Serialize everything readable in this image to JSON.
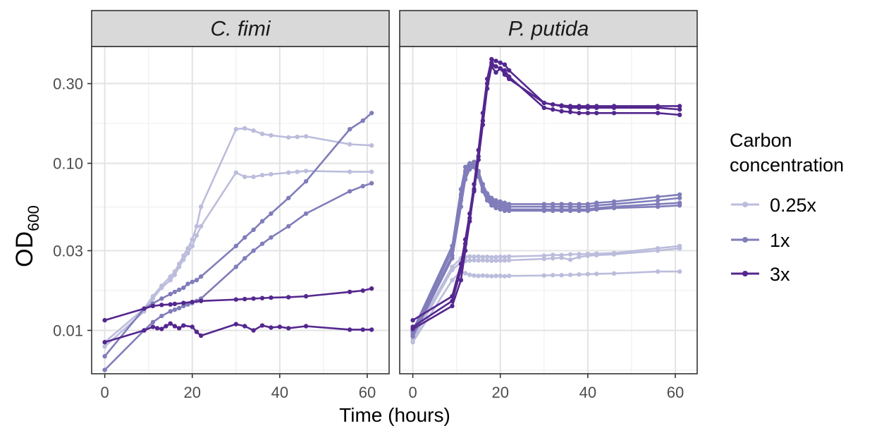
{
  "chart_data": {
    "type": "line",
    "xlabel": "Time (hours)",
    "ylabel_main": "OD",
    "ylabel_sub": "600",
    "y_scale": "log10",
    "ylim": [
      0.0055,
      0.5
    ],
    "xlim": [
      -3,
      65
    ],
    "y_ticks": [
      0.01,
      0.03,
      0.1,
      0.3
    ],
    "y_tick_labels": [
      "0.01",
      "0.03",
      "0.10",
      "0.30"
    ],
    "x_ticks": [
      0,
      20,
      40,
      60
    ],
    "x_tick_labels": [
      "0",
      "20",
      "40",
      "60"
    ],
    "legend": {
      "title_line1": "Carbon",
      "title_line2": "concentration",
      "entries": [
        {
          "label": "0.25x",
          "color": "#bcbddc"
        },
        {
          "label": "1x",
          "color": "#807dba"
        },
        {
          "label": "3x",
          "color": "#54278f"
        }
      ]
    },
    "colors": {
      "0.25x": "#bcbddc",
      "1x": "#807dba",
      "3x": "#54278f"
    },
    "panels": [
      {
        "title": "C. fimi",
        "series": [
          {
            "group": "0.25x",
            "x": [
              0,
              9,
              11,
              13,
              15,
              16,
              17,
              18,
              19,
              20,
              21,
              22,
              30,
              32,
              34,
              36,
              38,
              42,
              44,
              46,
              56,
              61
            ],
            "y": [
              0.0085,
              0.0135,
              0.016,
              0.0185,
              0.021,
              0.0225,
              0.025,
              0.028,
              0.031,
              0.035,
              0.042,
              0.055,
              0.16,
              0.162,
              0.157,
              0.15,
              0.147,
              0.143,
              0.144,
              0.145,
              0.13,
              0.128
            ]
          },
          {
            "group": "0.25x",
            "x": [
              0,
              9,
              11,
              13,
              15,
              16,
              17,
              18,
              19,
              20,
              21,
              22,
              30,
              32,
              34,
              36,
              38,
              42,
              44,
              46,
              56,
              61
            ],
            "y": [
              0.008,
              0.013,
              0.0155,
              0.018,
              0.02,
              0.0215,
              0.024,
              0.0265,
              0.029,
              0.032,
              0.037,
              0.042,
              0.088,
              0.083,
              0.083,
              0.085,
              0.086,
              0.088,
              0.089,
              0.09,
              0.089,
              0.089
            ]
          },
          {
            "group": "1x",
            "x": [
              0,
              9,
              11,
              13,
              15,
              16,
              17,
              18,
              19,
              20,
              21,
              22,
              30,
              32,
              34,
              36,
              38,
              42,
              46,
              56,
              59,
              61
            ],
            "y": [
              0.007,
              0.0135,
              0.0145,
              0.0155,
              0.0165,
              0.017,
              0.0175,
              0.018,
              0.019,
              0.0195,
              0.02,
              0.021,
              0.032,
              0.036,
              0.04,
              0.045,
              0.05,
              0.062,
              0.078,
              0.16,
              0.18,
              0.2
            ]
          },
          {
            "group": "1x",
            "x": [
              0,
              9,
              11,
              13,
              15,
              16,
              17,
              18,
              19,
              20,
              21,
              22,
              30,
              32,
              34,
              36,
              38,
              42,
              46,
              56,
              59,
              61
            ],
            "y": [
              0.0058,
              0.01,
              0.0112,
              0.0122,
              0.013,
              0.0133,
              0.0136,
              0.014,
              0.0143,
              0.0146,
              0.015,
              0.0155,
              0.024,
              0.027,
              0.03,
              0.033,
              0.036,
              0.042,
              0.05,
              0.068,
              0.073,
              0.076
            ]
          },
          {
            "group": "3x",
            "x": [
              0,
              9,
              11,
              13,
              15,
              16,
              18,
              20,
              22,
              30,
              32,
              34,
              36,
              38,
              42,
              46,
              56,
              59,
              61
            ],
            "y": [
              0.0115,
              0.0135,
              0.014,
              0.0142,
              0.0143,
              0.0144,
              0.0146,
              0.0148,
              0.015,
              0.0153,
              0.0154,
              0.0155,
              0.0156,
              0.0157,
              0.0158,
              0.016,
              0.017,
              0.0173,
              0.0178
            ]
          },
          {
            "group": "3x",
            "x": [
              0,
              9,
              11,
              12,
              13,
              14,
              15,
              16,
              17,
              18,
              20,
              21,
              22,
              30,
              32,
              34,
              36,
              38,
              40,
              42,
              46,
              56,
              59,
              61
            ],
            "y": [
              0.0085,
              0.01,
              0.0105,
              0.0103,
              0.0102,
              0.0106,
              0.011,
              0.0106,
              0.0103,
              0.0107,
              0.0105,
              0.0098,
              0.0093,
              0.0109,
              0.0106,
              0.01,
              0.0107,
              0.0104,
              0.0105,
              0.0103,
              0.0106,
              0.0101,
              0.0101,
              0.0101
            ]
          }
        ]
      },
      {
        "title": "P. putida",
        "series": [
          {
            "group": "0.25x",
            "x": [
              0,
              9,
              11,
              12,
              13,
              14,
              15,
              16,
              17,
              18,
              19,
              20,
              21,
              22,
              30,
              32,
              34,
              36,
              38,
              40,
              42,
              46,
              56,
              61
            ],
            "y": [
              0.0092,
              0.024,
              0.027,
              0.0275,
              0.0277,
              0.0276,
              0.0277,
              0.0275,
              0.0276,
              0.0274,
              0.0275,
              0.0276,
              0.0275,
              0.0277,
              0.028,
              0.0283,
              0.0282,
              0.0285,
              0.0286,
              0.0287,
              0.0288,
              0.029,
              0.031,
              0.032
            ]
          },
          {
            "group": "0.25x",
            "x": [
              0,
              9,
              11,
              12,
              13,
              14,
              15,
              16,
              17,
              18,
              19,
              20,
              21,
              22,
              30,
              32,
              34,
              36,
              38,
              40,
              42,
              46,
              56,
              61
            ],
            "y": [
              0.0088,
              0.023,
              0.0255,
              0.026,
              0.0262,
              0.0263,
              0.0262,
              0.0263,
              0.0262,
              0.0261,
              0.0262,
              0.0262,
              0.0262,
              0.0263,
              0.0268,
              0.027,
              0.0272,
              0.0265,
              0.0275,
              0.028,
              0.0282,
              0.0285,
              0.03,
              0.031
            ]
          },
          {
            "group": "0.25x",
            "x": [
              0,
              9,
              11,
              12,
              13,
              14,
              15,
              16,
              17,
              18,
              19,
              20,
              21,
              22,
              30,
              32,
              34,
              36,
              38,
              40,
              42,
              46,
              56,
              61
            ],
            "y": [
              0.0085,
              0.02,
              0.0225,
              0.022,
              0.0215,
              0.0213,
              0.0212,
              0.0213,
              0.0212,
              0.0211,
              0.0212,
              0.0212,
              0.0211,
              0.0212,
              0.0213,
              0.0214,
              0.0214,
              0.0215,
              0.0216,
              0.0217,
              0.0218,
              0.0219,
              0.0225,
              0.0225
            ]
          },
          {
            "group": "1x",
            "x": [
              0,
              9,
              11,
              12,
              13,
              14,
              15,
              16,
              17,
              18,
              19,
              20,
              21,
              22,
              30,
              32,
              34,
              36,
              38,
              40,
              42,
              46,
              56,
              61
            ],
            "y": [
              0.01,
              0.032,
              0.07,
              0.095,
              0.1,
              0.102,
              0.09,
              0.075,
              0.066,
              0.062,
              0.06,
              0.059,
              0.058,
              0.057,
              0.057,
              0.057,
              0.057,
              0.057,
              0.057,
              0.057,
              0.058,
              0.059,
              0.063,
              0.065
            ]
          },
          {
            "group": "1x",
            "x": [
              0,
              9,
              11,
              12,
              13,
              14,
              15,
              16,
              17,
              18,
              19,
              20,
              21,
              22,
              30,
              32,
              34,
              36,
              38,
              40,
              42,
              46,
              56,
              61
            ],
            "y": [
              0.0098,
              0.03,
              0.065,
              0.09,
              0.098,
              0.1,
              0.088,
              0.072,
              0.064,
              0.06,
              0.058,
              0.057,
              0.056,
              0.055,
              0.055,
              0.055,
              0.055,
              0.055,
              0.055,
              0.055,
              0.056,
              0.057,
              0.06,
              0.062
            ]
          },
          {
            "group": "1x",
            "x": [
              0,
              9,
              11,
              12,
              13,
              14,
              15,
              16,
              17,
              18,
              19,
              20,
              21,
              22,
              30,
              32,
              34,
              36,
              38,
              40,
              42,
              46,
              56,
              61
            ],
            "y": [
              0.0095,
              0.028,
              0.06,
              0.085,
              0.095,
              0.097,
              0.085,
              0.07,
              0.062,
              0.058,
              0.056,
              0.055,
              0.054,
              0.053,
              0.053,
              0.053,
              0.053,
              0.053,
              0.053,
              0.053,
              0.054,
              0.055,
              0.057,
              0.058
            ]
          },
          {
            "group": "1x",
            "x": [
              0,
              9,
              11,
              12,
              13,
              14,
              15,
              16,
              17,
              18,
              19,
              20,
              21,
              22,
              30,
              32,
              34,
              36,
              38,
              40,
              42,
              46,
              56,
              61
            ],
            "y": [
              0.0092,
              0.027,
              0.055,
              0.08,
              0.092,
              0.095,
              0.083,
              0.068,
              0.06,
              0.056,
              0.054,
              0.053,
              0.052,
              0.052,
              0.052,
              0.052,
              0.052,
              0.052,
              0.052,
              0.052,
              0.053,
              0.054,
              0.055,
              0.056
            ]
          },
          {
            "group": "3x",
            "x": [
              0,
              9,
              11,
              12,
              13,
              14,
              15,
              16,
              17,
              18,
              19,
              20,
              21,
              22,
              30,
              32,
              34,
              36,
              38,
              40,
              42,
              46,
              56,
              61
            ],
            "y": [
              0.0115,
              0.016,
              0.025,
              0.035,
              0.05,
              0.075,
              0.12,
              0.2,
              0.32,
              0.42,
              0.41,
              0.4,
              0.39,
              0.36,
              0.23,
              0.225,
              0.22,
              0.215,
              0.215,
              0.215,
              0.215,
              0.215,
              0.215,
              0.21
            ]
          },
          {
            "group": "3x",
            "x": [
              0,
              9,
              11,
              12,
              13,
              14,
              15,
              16,
              17,
              18,
              19,
              20,
              21,
              22,
              30,
              32,
              34,
              36,
              38,
              40,
              42,
              46,
              56,
              61
            ],
            "y": [
              0.0105,
              0.015,
              0.023,
              0.033,
              0.047,
              0.07,
              0.11,
              0.18,
              0.3,
              0.4,
              0.38,
              0.37,
              0.36,
              0.33,
              0.215,
              0.21,
              0.205,
              0.203,
              0.2,
              0.2,
              0.2,
              0.2,
              0.2,
              0.195
            ]
          },
          {
            "group": "3x",
            "x": [
              0,
              9,
              11,
              12,
              13,
              14,
              15,
              16,
              17,
              18,
              19,
              20,
              21,
              22,
              30,
              32,
              34,
              36,
              38,
              40,
              42,
              46,
              56,
              61
            ],
            "y": [
              0.0102,
              0.014,
              0.02,
              0.03,
              0.045,
              0.068,
              0.105,
              0.17,
              0.28,
              0.38,
              0.35,
              0.37,
              0.34,
              0.32,
              0.23,
              0.225,
              0.222,
              0.22,
              0.22,
              0.22,
              0.22,
              0.22,
              0.22,
              0.22
            ]
          }
        ]
      }
    ]
  }
}
